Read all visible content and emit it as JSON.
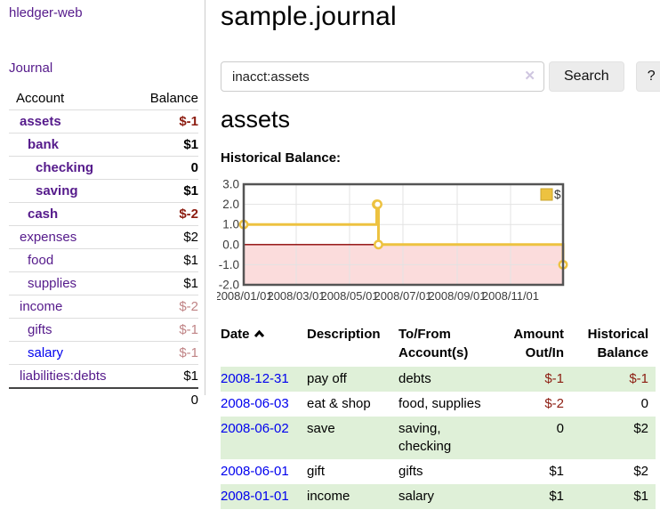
{
  "app": {
    "brand": "hledger-web"
  },
  "colors": {
    "link_purple": "#551A8B",
    "link_blue": "#0000EE",
    "negative": "#8c1c10",
    "negative_soft": "#c08486",
    "row_green": "#dff0d8",
    "chart_line": "#edc240",
    "chart_negative_fill": "#fbdcdc",
    "chart_zero_line": "#8b0000"
  },
  "sidebar": {
    "journal_label": "Journal",
    "accounts": {
      "headers": {
        "account": "Account",
        "balance": "Balance"
      },
      "rows": [
        {
          "name": "assets",
          "indent": 1,
          "in_query": true,
          "balance": "$-1",
          "tone": "negative"
        },
        {
          "name": "bank",
          "indent": 2,
          "in_query": true,
          "balance": "$1",
          "tone": "normal"
        },
        {
          "name": "checking",
          "indent": 3,
          "in_query": true,
          "balance": "0",
          "tone": "normal"
        },
        {
          "name": "saving",
          "indent": 3,
          "in_query": true,
          "balance": "$1",
          "tone": "normal"
        },
        {
          "name": "cash",
          "indent": 2,
          "in_query": true,
          "balance": "$-2",
          "tone": "negative"
        },
        {
          "name": "expenses",
          "indent": 1,
          "in_query": false,
          "balance": "$2",
          "tone": "normal"
        },
        {
          "name": "food",
          "indent": 2,
          "in_query": false,
          "balance": "$1",
          "tone": "normal"
        },
        {
          "name": "supplies",
          "indent": 2,
          "in_query": false,
          "balance": "$1",
          "tone": "normal"
        },
        {
          "name": "income",
          "indent": 1,
          "in_query": false,
          "balance": "$-2",
          "tone": "negative-soft"
        },
        {
          "name": "gifts",
          "indent": 2,
          "in_query": false,
          "balance": "$-1",
          "tone": "negative-soft"
        },
        {
          "name": "salary",
          "indent": 2,
          "in_query": false,
          "balance": "$-1",
          "tone": "negative-soft",
          "link_color": "blue"
        },
        {
          "name": "liabilities:debts",
          "indent": 1,
          "in_query": false,
          "balance": "$1",
          "tone": "normal"
        }
      ],
      "total": "0"
    }
  },
  "main": {
    "title": "sample.journal",
    "search": {
      "value": "inacct:assets",
      "clear_icon": "✕",
      "button_label": "Search",
      "help_label": "?"
    },
    "account_heading": "assets",
    "chart_heading": "Historical Balance:"
  },
  "chart_data": {
    "type": "line",
    "step": true,
    "title": "Historical Balance",
    "series": [
      {
        "name": "$",
        "points": [
          [
            "2008-01-01",
            1
          ],
          [
            "2008-06-01",
            2
          ],
          [
            "2008-06-02",
            2
          ],
          [
            "2008-06-03",
            0
          ],
          [
            "2008-12-31",
            -1
          ]
        ]
      }
    ],
    "xlim": [
      "2008-01-01",
      "2008-12-31"
    ],
    "ylim": [
      -2,
      3
    ],
    "y_ticks": [
      {
        "v": 3,
        "label": "3.0"
      },
      {
        "v": 2,
        "label": "2.0"
      },
      {
        "v": 1,
        "label": "1.0"
      },
      {
        "v": 0,
        "label": "0.0"
      },
      {
        "v": -1,
        "label": "-1.0"
      },
      {
        "v": -2,
        "label": "-2.0"
      }
    ],
    "x_ticks": [
      {
        "date": "2008-01-01",
        "label": "2008/01/01"
      },
      {
        "date": "2008-03-01",
        "label": "2008/03/01"
      },
      {
        "date": "2008-05-01",
        "label": "2008/05/01"
      },
      {
        "date": "2008-07-01",
        "label": "2008/07/01"
      },
      {
        "date": "2008-09-01",
        "label": "2008/09/01"
      },
      {
        "date": "2008-11-01",
        "label": "2008/11/01"
      }
    ],
    "grid": true,
    "legend_position": "top-right",
    "negative_region_highlight": true
  },
  "register": {
    "headers": [
      "Date",
      "Description",
      "To/From Account(s)",
      "Amount Out/In",
      "Historical Balance"
    ],
    "rows": [
      {
        "date": "2008-12-31",
        "description": "pay off",
        "accounts": "debts",
        "amount": "$-1",
        "amount_tone": "negative",
        "balance": "$-1",
        "balance_tone": "negative"
      },
      {
        "date": "2008-06-03",
        "description": "eat & shop",
        "accounts": "food, supplies",
        "amount": "$-2",
        "amount_tone": "negative",
        "balance": "0",
        "balance_tone": "normal"
      },
      {
        "date": "2008-06-02",
        "description": "save",
        "accounts": "saving, checking",
        "amount": "0",
        "amount_tone": "normal",
        "balance": "$2",
        "balance_tone": "normal"
      },
      {
        "date": "2008-06-01",
        "description": "gift",
        "accounts": "gifts",
        "amount": "$1",
        "amount_tone": "normal",
        "balance": "$2",
        "balance_tone": "normal"
      },
      {
        "date": "2008-01-01",
        "description": "income",
        "accounts": "salary",
        "amount": "$1",
        "amount_tone": "normal",
        "balance": "$1",
        "balance_tone": "normal"
      }
    ]
  }
}
